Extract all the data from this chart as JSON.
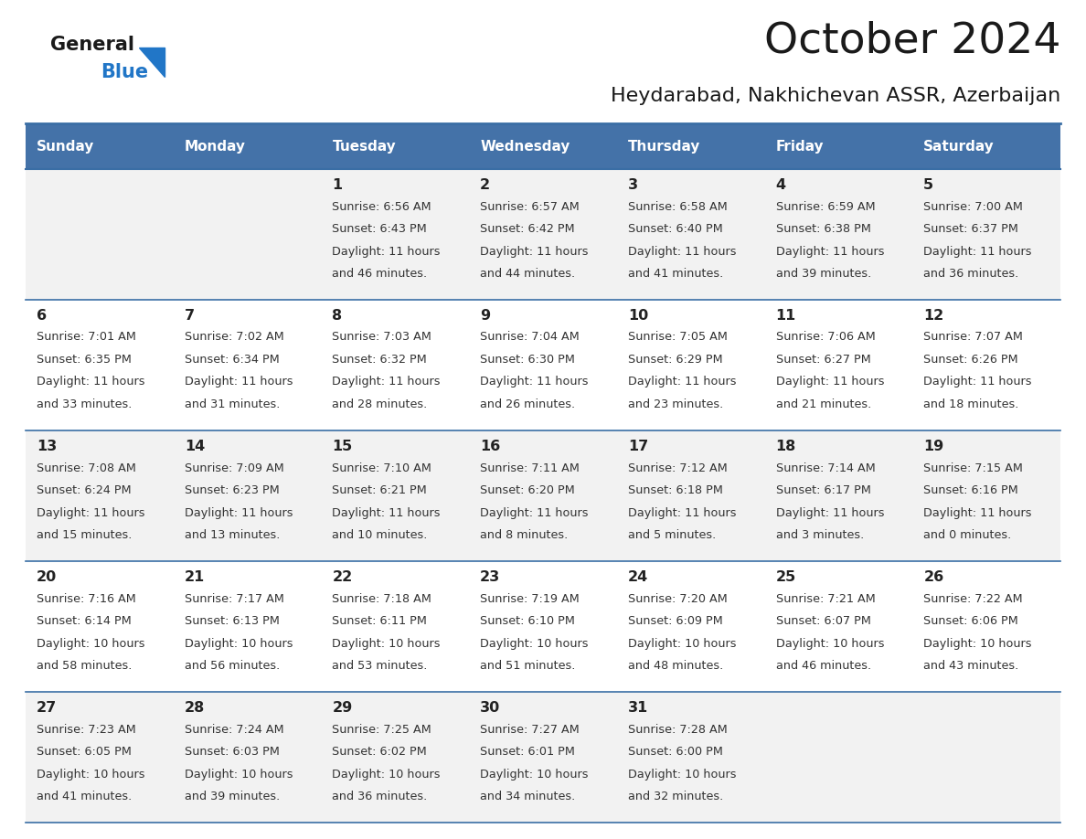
{
  "title": "October 2024",
  "subtitle": "Heydarabad, Nakhichevan ASSR, Azerbaijan",
  "days_of_week": [
    "Sunday",
    "Monday",
    "Tuesday",
    "Wednesday",
    "Thursday",
    "Friday",
    "Saturday"
  ],
  "header_bg": "#4472a8",
  "header_text": "#ffffff",
  "cell_bg_row0": "#f2f2f2",
  "cell_bg_row1": "#ffffff",
  "cell_bg_row2": "#f2f2f2",
  "cell_bg_row3": "#ffffff",
  "cell_bg_row4": "#f2f2f2",
  "line_color": "#3a6ea5",
  "text_color": "#222222",
  "info_color": "#333333",
  "calendar": [
    [
      null,
      null,
      {
        "day": "1",
        "sunrise": "6:56 AM",
        "sunset": "6:43 PM",
        "dl1": "Daylight: 11 hours",
        "dl2": "and 46 minutes."
      },
      {
        "day": "2",
        "sunrise": "6:57 AM",
        "sunset": "6:42 PM",
        "dl1": "Daylight: 11 hours",
        "dl2": "and 44 minutes."
      },
      {
        "day": "3",
        "sunrise": "6:58 AM",
        "sunset": "6:40 PM",
        "dl1": "Daylight: 11 hours",
        "dl2": "and 41 minutes."
      },
      {
        "day": "4",
        "sunrise": "6:59 AM",
        "sunset": "6:38 PM",
        "dl1": "Daylight: 11 hours",
        "dl2": "and 39 minutes."
      },
      {
        "day": "5",
        "sunrise": "7:00 AM",
        "sunset": "6:37 PM",
        "dl1": "Daylight: 11 hours",
        "dl2": "and 36 minutes."
      }
    ],
    [
      {
        "day": "6",
        "sunrise": "7:01 AM",
        "sunset": "6:35 PM",
        "dl1": "Daylight: 11 hours",
        "dl2": "and 33 minutes."
      },
      {
        "day": "7",
        "sunrise": "7:02 AM",
        "sunset": "6:34 PM",
        "dl1": "Daylight: 11 hours",
        "dl2": "and 31 minutes."
      },
      {
        "day": "8",
        "sunrise": "7:03 AM",
        "sunset": "6:32 PM",
        "dl1": "Daylight: 11 hours",
        "dl2": "and 28 minutes."
      },
      {
        "day": "9",
        "sunrise": "7:04 AM",
        "sunset": "6:30 PM",
        "dl1": "Daylight: 11 hours",
        "dl2": "and 26 minutes."
      },
      {
        "day": "10",
        "sunrise": "7:05 AM",
        "sunset": "6:29 PM",
        "dl1": "Daylight: 11 hours",
        "dl2": "and 23 minutes."
      },
      {
        "day": "11",
        "sunrise": "7:06 AM",
        "sunset": "6:27 PM",
        "dl1": "Daylight: 11 hours",
        "dl2": "and 21 minutes."
      },
      {
        "day": "12",
        "sunrise": "7:07 AM",
        "sunset": "6:26 PM",
        "dl1": "Daylight: 11 hours",
        "dl2": "and 18 minutes."
      }
    ],
    [
      {
        "day": "13",
        "sunrise": "7:08 AM",
        "sunset": "6:24 PM",
        "dl1": "Daylight: 11 hours",
        "dl2": "and 15 minutes."
      },
      {
        "day": "14",
        "sunrise": "7:09 AM",
        "sunset": "6:23 PM",
        "dl1": "Daylight: 11 hours",
        "dl2": "and 13 minutes."
      },
      {
        "day": "15",
        "sunrise": "7:10 AM",
        "sunset": "6:21 PM",
        "dl1": "Daylight: 11 hours",
        "dl2": "and 10 minutes."
      },
      {
        "day": "16",
        "sunrise": "7:11 AM",
        "sunset": "6:20 PM",
        "dl1": "Daylight: 11 hours",
        "dl2": "and 8 minutes."
      },
      {
        "day": "17",
        "sunrise": "7:12 AM",
        "sunset": "6:18 PM",
        "dl1": "Daylight: 11 hours",
        "dl2": "and 5 minutes."
      },
      {
        "day": "18",
        "sunrise": "7:14 AM",
        "sunset": "6:17 PM",
        "dl1": "Daylight: 11 hours",
        "dl2": "and 3 minutes."
      },
      {
        "day": "19",
        "sunrise": "7:15 AM",
        "sunset": "6:16 PM",
        "dl1": "Daylight: 11 hours",
        "dl2": "and 0 minutes."
      }
    ],
    [
      {
        "day": "20",
        "sunrise": "7:16 AM",
        "sunset": "6:14 PM",
        "dl1": "Daylight: 10 hours",
        "dl2": "and 58 minutes."
      },
      {
        "day": "21",
        "sunrise": "7:17 AM",
        "sunset": "6:13 PM",
        "dl1": "Daylight: 10 hours",
        "dl2": "and 56 minutes."
      },
      {
        "day": "22",
        "sunrise": "7:18 AM",
        "sunset": "6:11 PM",
        "dl1": "Daylight: 10 hours",
        "dl2": "and 53 minutes."
      },
      {
        "day": "23",
        "sunrise": "7:19 AM",
        "sunset": "6:10 PM",
        "dl1": "Daylight: 10 hours",
        "dl2": "and 51 minutes."
      },
      {
        "day": "24",
        "sunrise": "7:20 AM",
        "sunset": "6:09 PM",
        "dl1": "Daylight: 10 hours",
        "dl2": "and 48 minutes."
      },
      {
        "day": "25",
        "sunrise": "7:21 AM",
        "sunset": "6:07 PM",
        "dl1": "Daylight: 10 hours",
        "dl2": "and 46 minutes."
      },
      {
        "day": "26",
        "sunrise": "7:22 AM",
        "sunset": "6:06 PM",
        "dl1": "Daylight: 10 hours",
        "dl2": "and 43 minutes."
      }
    ],
    [
      {
        "day": "27",
        "sunrise": "7:23 AM",
        "sunset": "6:05 PM",
        "dl1": "Daylight: 10 hours",
        "dl2": "and 41 minutes."
      },
      {
        "day": "28",
        "sunrise": "7:24 AM",
        "sunset": "6:03 PM",
        "dl1": "Daylight: 10 hours",
        "dl2": "and 39 minutes."
      },
      {
        "day": "29",
        "sunrise": "7:25 AM",
        "sunset": "6:02 PM",
        "dl1": "Daylight: 10 hours",
        "dl2": "and 36 minutes."
      },
      {
        "day": "30",
        "sunrise": "7:27 AM",
        "sunset": "6:01 PM",
        "dl1": "Daylight: 10 hours",
        "dl2": "and 34 minutes."
      },
      {
        "day": "31",
        "sunrise": "7:28 AM",
        "sunset": "6:00 PM",
        "dl1": "Daylight: 10 hours",
        "dl2": "and 32 minutes."
      },
      null,
      null
    ]
  ],
  "fig_width": 11.88,
  "fig_height": 9.18,
  "dpi": 100
}
